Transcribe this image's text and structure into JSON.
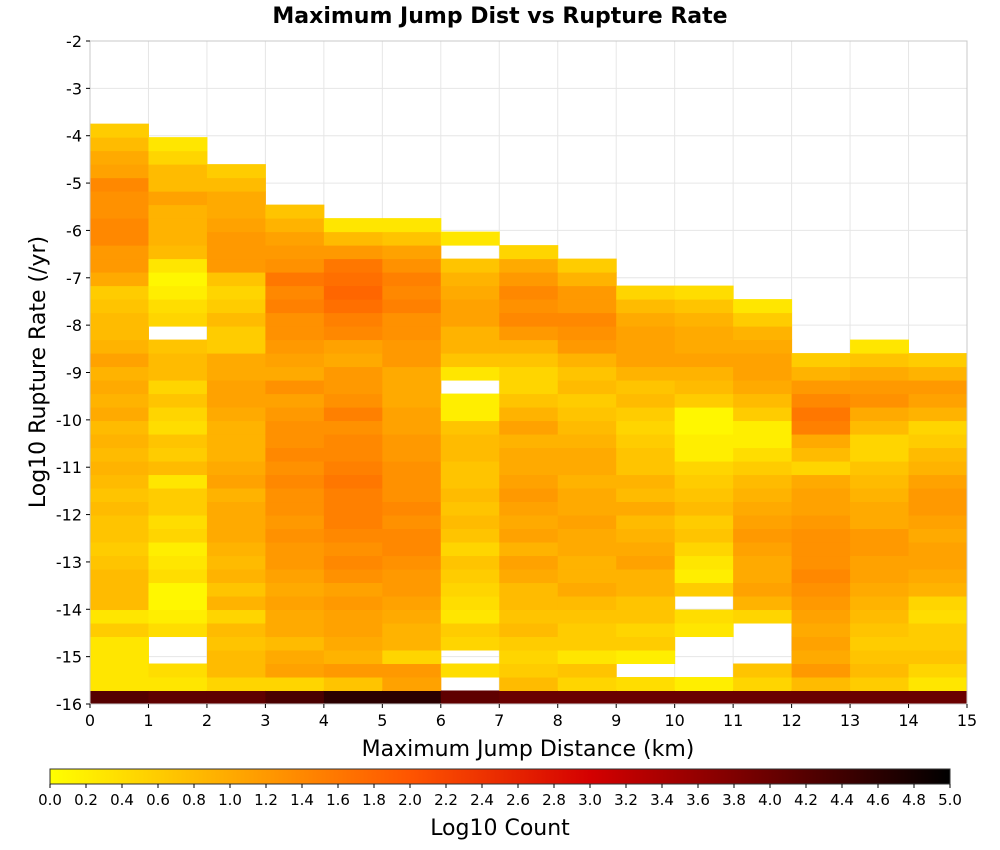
{
  "chart_data": {
    "type": "heatmap",
    "title": "Maximum Jump Dist vs Rupture Rate",
    "xlabel": "Maximum Jump Distance (km)",
    "ylabel": "Log10 Rupture Rate (/yr)",
    "xlim": [
      0,
      15
    ],
    "ylim": [
      -16,
      -2
    ],
    "x_ticks": [
      "0",
      "1",
      "2",
      "3",
      "4",
      "5",
      "6",
      "7",
      "8",
      "9",
      "10",
      "11",
      "12",
      "13",
      "14",
      "15"
    ],
    "y_ticks": [
      "-2",
      "-3",
      "-4",
      "-5",
      "-6",
      "-7",
      "-8",
      "-9",
      "-10",
      "-11",
      "-12",
      "-13",
      "-14",
      "-15",
      "-16"
    ],
    "x_bin_width": 1,
    "y_bin_width": 0.285,
    "y_bin_start": -16,
    "colorbar": {
      "label": "Log10 Count",
      "range": [
        0,
        5
      ],
      "ticks": [
        "0.0",
        "0.2",
        "0.4",
        "0.6",
        "0.8",
        "1.0",
        "1.2",
        "1.4",
        "1.6",
        "1.8",
        "2.0",
        "2.2",
        "2.4",
        "2.6",
        "2.8",
        "3.0",
        "3.2",
        "3.4",
        "3.6",
        "3.8",
        "4.0",
        "4.2",
        "4.4",
        "4.6",
        "4.8",
        "5.0"
      ],
      "colors": [
        "#ffff00",
        "#ffaa00",
        "#ff5500",
        "#d40000",
        "#6a0000",
        "#000000"
      ]
    },
    "columns": [
      {
        "x_bin": [
          0,
          1
        ],
        "log10_count_by_row": [
          4.2,
          0.3,
          0.3,
          0.3,
          0.3,
          0.6,
          0.3,
          0.8,
          0.8,
          0.8,
          0.7,
          0.6,
          0.7,
          0.7,
          0.8,
          0.7,
          0.8,
          0.9,
          0.8,
          0.9,
          0.8,
          1.0,
          0.9,
          1.0,
          0.9,
          1.1,
          0.9,
          0.8,
          0.8,
          0.7,
          0.6,
          1.0,
          1.2,
          1.2,
          1.4,
          1.4,
          1.3,
          1.3,
          1.4,
          1.1,
          1.0,
          0.8,
          0.6
        ]
      },
      {
        "x_bin": [
          1,
          2
        ],
        "log10_count_by_row": [
          4.1,
          0.3,
          0.4,
          null,
          null,
          0.4,
          0.2,
          0.1,
          0.1,
          0.4,
          0.3,
          0.2,
          0.5,
          0.4,
          0.6,
          0.6,
          0.3,
          0.8,
          0.6,
          0.7,
          0.4,
          0.5,
          0.7,
          0.5,
          0.8,
          0.8,
          0.7,
          null,
          0.5,
          0.4,
          0.2,
          0.1,
          0.3,
          0.8,
          0.9,
          0.9,
          0.9,
          1.1,
          0.8,
          0.8,
          0.5,
          0.3
        ]
      },
      {
        "x_bin": [
          2,
          3
        ],
        "log10_count_by_row": [
          4.1,
          0.5,
          0.8,
          0.8,
          0.7,
          0.8,
          0.5,
          0.9,
          0.7,
          0.9,
          0.8,
          0.9,
          1.0,
          1.0,
          1.0,
          0.9,
          1.1,
          1.0,
          0.9,
          0.9,
          0.9,
          1.0,
          1.1,
          1.1,
          1.0,
          1.0,
          0.6,
          0.6,
          0.8,
          0.6,
          0.5,
          0.7,
          1.2,
          1.2,
          1.2,
          1.1,
          1.0,
          1.0,
          0.8,
          0.6
        ]
      },
      {
        "x_bin": [
          3,
          4
        ],
        "log10_count_by_row": [
          4.3,
          0.5,
          1.1,
          1.0,
          0.8,
          1.0,
          1.0,
          1.1,
          1.0,
          1.1,
          1.2,
          1.2,
          1.3,
          1.2,
          1.3,
          1.3,
          1.4,
          1.3,
          1.4,
          1.3,
          1.3,
          1.2,
          1.1,
          1.3,
          1.0,
          1.1,
          1.2,
          1.3,
          1.3,
          1.5,
          1.4,
          1.6,
          1.3,
          1.2,
          1.1,
          0.9,
          0.7
        ]
      },
      {
        "x_bin": [
          4,
          5
        ],
        "log10_count_by_row": [
          4.6,
          0.7,
          1.2,
          0.9,
          1.0,
          1.1,
          1.1,
          1.2,
          1.1,
          1.3,
          1.4,
          1.3,
          1.4,
          1.5,
          1.5,
          1.5,
          1.6,
          1.5,
          1.4,
          1.4,
          1.3,
          1.5,
          1.3,
          1.2,
          1.2,
          1.0,
          1.1,
          1.4,
          1.5,
          1.7,
          1.8,
          1.7,
          1.6,
          1.2,
          0.8,
          0.3
        ]
      },
      {
        "x_bin": [
          5,
          6
        ],
        "log10_count_by_row": [
          4.6,
          1.1,
          1.2,
          0.5,
          0.9,
          0.9,
          1.0,
          1.1,
          1.2,
          1.2,
          1.3,
          1.4,
          1.4,
          1.3,
          1.4,
          1.3,
          1.3,
          1.3,
          1.2,
          1.2,
          1.1,
          1.1,
          1.0,
          1.0,
          1.0,
          1.2,
          1.2,
          1.3,
          1.3,
          1.5,
          1.4,
          1.5,
          1.3,
          1.1,
          0.7,
          0.3
        ]
      },
      {
        "x_bin": [
          6,
          7
        ],
        "log10_count_by_row": [
          4.1,
          null,
          0.4,
          null,
          0.5,
          0.6,
          0.3,
          0.4,
          0.5,
          0.6,
          0.7,
          0.5,
          0.7,
          0.8,
          0.7,
          0.8,
          0.7,
          0.7,
          0.8,
          0.8,
          0.7,
          0.2,
          0.2,
          null,
          0.3,
          0.7,
          0.9,
          0.9,
          1.1,
          1.1,
          1.0,
          0.9,
          0.7,
          null,
          0.3
        ]
      },
      {
        "x_bin": [
          7,
          8
        ],
        "log10_count_by_row": [
          4.0,
          0.8,
          0.6,
          0.5,
          0.6,
          0.8,
          0.7,
          0.8,
          0.8,
          1.0,
          1.1,
          0.9,
          1.1,
          1.0,
          1.1,
          1.2,
          1.1,
          1.0,
          1.0,
          0.9,
          1.1,
          0.9,
          0.7,
          0.5,
          0.5,
          0.7,
          0.9,
          1.2,
          1.4,
          1.3,
          1.4,
          1.2,
          1.0,
          0.5
        ]
      },
      {
        "x_bin": [
          8,
          9
        ],
        "log10_count_by_row": [
          4.0,
          0.5,
          0.7,
          0.3,
          0.6,
          0.6,
          0.7,
          0.8,
          1.0,
          0.9,
          0.9,
          1.0,
          1.0,
          1.1,
          1.0,
          1.0,
          0.9,
          1.0,
          1.0,
          0.9,
          0.8,
          0.7,
          0.6,
          0.8,
          0.7,
          0.9,
          1.2,
          1.3,
          1.4,
          1.2,
          1.2,
          0.9,
          0.6
        ]
      },
      {
        "x_bin": [
          9,
          10
        ],
        "log10_count_by_row": [
          4.0,
          0.4,
          null,
          0.2,
          0.6,
          0.5,
          0.7,
          0.7,
          0.9,
          0.9,
          1.1,
          1.0,
          0.9,
          0.8,
          1.0,
          0.8,
          0.9,
          0.7,
          0.7,
          0.6,
          0.5,
          0.6,
          0.8,
          0.7,
          0.9,
          1.1,
          1.1,
          1.1,
          1.0,
          0.8,
          0.5
        ]
      },
      {
        "x_bin": [
          10,
          11
        ],
        "log10_count_by_row": [
          4.0,
          0.2,
          null,
          null,
          null,
          0.3,
          0.4,
          null,
          0.6,
          0.2,
          0.3,
          0.5,
          0.7,
          0.6,
          0.8,
          0.7,
          0.6,
          0.5,
          0.2,
          0.2,
          0.1,
          0.1,
          0.6,
          0.8,
          0.9,
          1.1,
          1.0,
          1.0,
          0.9,
          0.7,
          0.4
        ]
      },
      {
        "x_bin": [
          11,
          12
        ],
        "log10_count_by_row": [
          4.0,
          0.5,
          0.7,
          null,
          null,
          null,
          0.5,
          0.9,
          1.1,
          1.0,
          1.0,
          1.1,
          1.2,
          1.1,
          1.0,
          0.9,
          0.8,
          0.6,
          0.4,
          0.2,
          0.2,
          0.6,
          0.8,
          1.0,
          1.1,
          1.1,
          1.0,
          0.9,
          0.6,
          0.3
        ]
      },
      {
        "x_bin": [
          12,
          13
        ],
        "log10_count_by_row": [
          4.0,
          0.8,
          1.2,
          1.0,
          1.1,
          1.0,
          1.1,
          1.2,
          1.3,
          1.4,
          1.3,
          1.3,
          1.3,
          1.2,
          1.1,
          1.1,
          1.0,
          0.5,
          0.8,
          1.0,
          1.5,
          1.6,
          1.4,
          1.2,
          0.9,
          0.6
        ]
      },
      {
        "x_bin": [
          13,
          14
        ],
        "log10_count_by_row": [
          4.0,
          0.6,
          0.8,
          0.7,
          0.6,
          0.7,
          0.8,
          0.9,
          1.0,
          1.1,
          1.1,
          1.2,
          1.2,
          1.0,
          1.0,
          0.9,
          0.8,
          0.7,
          0.5,
          0.5,
          0.8,
          1.0,
          1.3,
          1.2,
          1.0,
          0.7,
          0.3
        ]
      },
      {
        "x_bin": [
          14,
          15
        ],
        "log10_count_by_row": [
          4.0,
          0.3,
          0.5,
          0.7,
          0.6,
          0.6,
          0.4,
          0.5,
          0.9,
          1.0,
          1.1,
          1.1,
          1.0,
          1.1,
          1.2,
          1.2,
          1.1,
          0.9,
          0.8,
          0.6,
          0.5,
          0.9,
          1.1,
          1.2,
          0.9,
          0.6
        ]
      }
    ]
  }
}
